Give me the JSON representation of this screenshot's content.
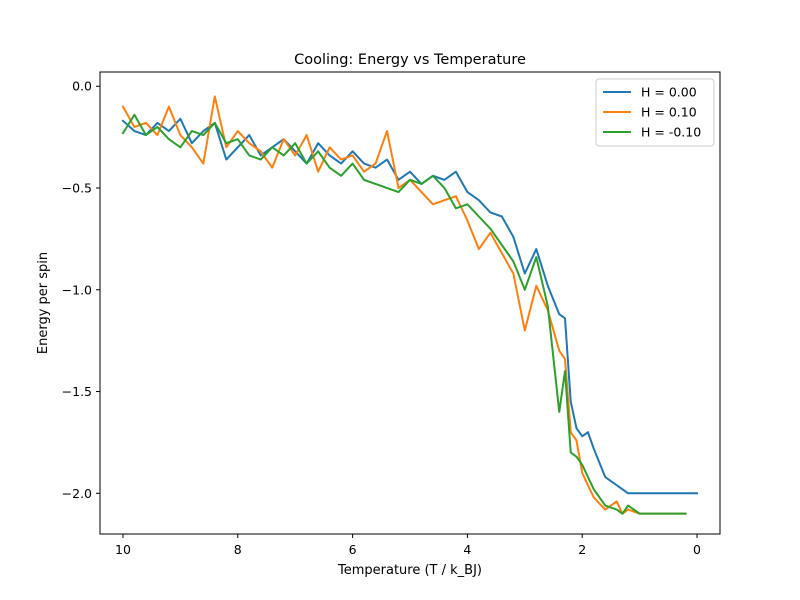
{
  "chart_data": {
    "type": "line",
    "title": "Cooling: Energy vs Temperature",
    "xlabel": "Temperature (T / k_BJ)",
    "ylabel": "Energy per spin",
    "xlim": [
      10.4,
      -0.4
    ],
    "ylim": [
      -2.2,
      0.07
    ],
    "x_ticks": [
      10,
      8,
      6,
      4,
      2,
      0
    ],
    "x_tick_labels": [
      "10",
      "8",
      "6",
      "4",
      "2",
      "0"
    ],
    "y_ticks": [
      0.0,
      -0.5,
      -1.0,
      -1.5,
      -2.0
    ],
    "y_tick_labels": [
      "0.0",
      "−0.5",
      "−1.0",
      "−1.5",
      "−2.0"
    ],
    "grid": false,
    "legend_position": "top-right",
    "series": [
      {
        "name": "H = 0.00",
        "color": "#1f77b4",
        "x": [
          10.0,
          9.8,
          9.6,
          9.4,
          9.2,
          9.0,
          8.8,
          8.6,
          8.4,
          8.2,
          8.0,
          7.8,
          7.6,
          7.4,
          7.2,
          7.0,
          6.8,
          6.6,
          6.4,
          6.2,
          6.0,
          5.8,
          5.6,
          5.4,
          5.2,
          5.0,
          4.8,
          4.6,
          4.4,
          4.2,
          4.0,
          3.8,
          3.6,
          3.4,
          3.2,
          3.0,
          2.8,
          2.6,
          2.4,
          2.3,
          2.2,
          2.1,
          2.0,
          1.9,
          1.8,
          1.6,
          1.4,
          1.2,
          1.0,
          0.8,
          0.6,
          0.4,
          0.2,
          0.0
        ],
        "y": [
          -0.17,
          -0.22,
          -0.24,
          -0.18,
          -0.22,
          -0.16,
          -0.28,
          -0.22,
          -0.18,
          -0.36,
          -0.3,
          -0.24,
          -0.34,
          -0.3,
          -0.26,
          -0.32,
          -0.38,
          -0.28,
          -0.34,
          -0.38,
          -0.32,
          -0.38,
          -0.4,
          -0.36,
          -0.46,
          -0.42,
          -0.48,
          -0.44,
          -0.46,
          -0.42,
          -0.52,
          -0.56,
          -0.62,
          -0.64,
          -0.74,
          -0.92,
          -0.8,
          -0.98,
          -1.12,
          -1.14,
          -1.55,
          -1.68,
          -1.72,
          -1.7,
          -1.78,
          -1.92,
          -1.96,
          -2.0,
          -2.0,
          -2.0,
          -2.0,
          -2.0,
          -2.0,
          -2.0
        ]
      },
      {
        "name": "H = 0.10",
        "color": "#ff7f0e",
        "x": [
          10.0,
          9.8,
          9.6,
          9.4,
          9.2,
          9.0,
          8.8,
          8.6,
          8.4,
          8.2,
          8.0,
          7.8,
          7.6,
          7.4,
          7.2,
          7.0,
          6.8,
          6.6,
          6.4,
          6.2,
          6.0,
          5.8,
          5.6,
          5.4,
          5.2,
          5.0,
          4.8,
          4.6,
          4.4,
          4.2,
          4.0,
          3.8,
          3.6,
          3.4,
          3.2,
          3.0,
          2.8,
          2.6,
          2.4,
          2.3,
          2.2,
          2.1,
          2.0,
          1.9,
          1.8,
          1.6,
          1.4,
          1.3,
          1.2,
          1.0,
          0.8,
          0.6,
          0.4,
          0.2
        ],
        "y": [
          -0.1,
          -0.2,
          -0.18,
          -0.24,
          -0.1,
          -0.24,
          -0.3,
          -0.38,
          -0.05,
          -0.3,
          -0.22,
          -0.28,
          -0.32,
          -0.4,
          -0.26,
          -0.34,
          -0.24,
          -0.42,
          -0.3,
          -0.36,
          -0.34,
          -0.42,
          -0.38,
          -0.22,
          -0.5,
          -0.46,
          -0.52,
          -0.58,
          -0.56,
          -0.54,
          -0.66,
          -0.8,
          -0.72,
          -0.82,
          -0.92,
          -1.2,
          -0.98,
          -1.1,
          -1.3,
          -1.34,
          -1.7,
          -1.74,
          -1.9,
          -1.96,
          -2.02,
          -2.08,
          -2.04,
          -2.1,
          -2.08,
          -2.1,
          -2.1,
          -2.1,
          -2.1,
          -2.1
        ]
      },
      {
        "name": "H = -0.10",
        "color": "#2ca02c",
        "x": [
          10.0,
          9.8,
          9.6,
          9.4,
          9.2,
          9.0,
          8.8,
          8.6,
          8.4,
          8.2,
          8.0,
          7.8,
          7.6,
          7.4,
          7.2,
          7.0,
          6.8,
          6.6,
          6.4,
          6.2,
          6.0,
          5.8,
          5.6,
          5.4,
          5.2,
          5.0,
          4.8,
          4.6,
          4.4,
          4.2,
          4.0,
          3.8,
          3.6,
          3.4,
          3.2,
          3.0,
          2.8,
          2.6,
          2.4,
          2.3,
          2.2,
          2.1,
          2.0,
          1.9,
          1.8,
          1.6,
          1.4,
          1.3,
          1.2,
          1.0,
          0.8,
          0.6,
          0.4,
          0.2
        ],
        "y": [
          -0.23,
          -0.14,
          -0.24,
          -0.2,
          -0.26,
          -0.3,
          -0.22,
          -0.24,
          -0.18,
          -0.28,
          -0.26,
          -0.34,
          -0.36,
          -0.3,
          -0.34,
          -0.28,
          -0.38,
          -0.32,
          -0.4,
          -0.44,
          -0.38,
          -0.46,
          -0.48,
          -0.5,
          -0.52,
          -0.46,
          -0.48,
          -0.44,
          -0.5,
          -0.6,
          -0.58,
          -0.64,
          -0.7,
          -0.78,
          -0.86,
          -1.0,
          -0.84,
          -1.08,
          -1.6,
          -1.4,
          -1.8,
          -1.82,
          -1.86,
          -1.92,
          -1.98,
          -2.06,
          -2.08,
          -2.1,
          -2.06,
          -2.1,
          -2.1,
          -2.1,
          -2.1,
          -2.1
        ]
      }
    ]
  }
}
